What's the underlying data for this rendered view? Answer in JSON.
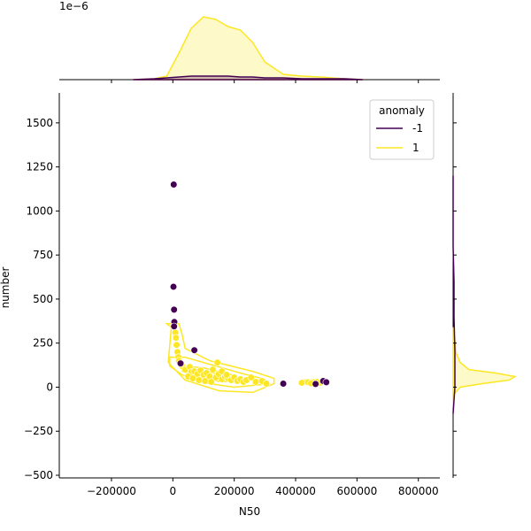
{
  "chart_data": {
    "type": "scatter",
    "title": "",
    "xlabel": "N50",
    "ylabel": "number",
    "xlim": [
      -370000,
      870000
    ],
    "ylim": [
      -515,
      1670
    ],
    "x_ticks": [
      -200000,
      0,
      200000,
      400000,
      600000,
      800000
    ],
    "x_tick_labels": [
      "−200000",
      "0",
      "200000",
      "400000",
      "600000",
      "800000"
    ],
    "y_ticks": [
      -500,
      -250,
      0,
      250,
      500,
      750,
      1000,
      1250,
      1500
    ],
    "y_tick_labels": [
      "−500",
      "−250",
      "0",
      "250",
      "500",
      "750",
      "1000",
      "1250",
      "1500"
    ],
    "top_marginal_scale_label": "1e−6",
    "legend": {
      "title": "anomaly",
      "placement": "top-right",
      "entries": [
        {
          "label": "-1",
          "color": "#440154"
        },
        {
          "label": "1",
          "color": "#fde725"
        }
      ]
    },
    "series": [
      {
        "name": "-1",
        "color": "#440154",
        "points": [
          [
            3000,
            1150
          ],
          [
            2000,
            570
          ],
          [
            4000,
            440
          ],
          [
            5000,
            370
          ],
          [
            4000,
            345
          ],
          [
            70000,
            210
          ],
          [
            25000,
            135
          ],
          [
            360000,
            20
          ],
          [
            465000,
            18
          ],
          [
            490000,
            35
          ],
          [
            500000,
            28
          ]
        ]
      },
      {
        "name": "1",
        "color": "#fde725",
        "points": [
          [
            8000,
            310
          ],
          [
            10000,
            280
          ],
          [
            12000,
            240
          ],
          [
            15000,
            200
          ],
          [
            18000,
            170
          ],
          [
            20000,
            150
          ],
          [
            30000,
            120
          ],
          [
            40000,
            100
          ],
          [
            55000,
            115
          ],
          [
            60000,
            85
          ],
          [
            70000,
            90
          ],
          [
            80000,
            75
          ],
          [
            90000,
            95
          ],
          [
            100000,
            70
          ],
          [
            110000,
            80
          ],
          [
            120000,
            60
          ],
          [
            130000,
            100
          ],
          [
            140000,
            55
          ],
          [
            145000,
            140
          ],
          [
            150000,
            75
          ],
          [
            160000,
            45
          ],
          [
            170000,
            60
          ],
          [
            180000,
            50
          ],
          [
            190000,
            40
          ],
          [
            200000,
            55
          ],
          [
            210000,
            35
          ],
          [
            220000,
            45
          ],
          [
            230000,
            30
          ],
          [
            240000,
            40
          ],
          [
            255000,
            55
          ],
          [
            270000,
            30
          ],
          [
            290000,
            35
          ],
          [
            305000,
            20
          ],
          [
            50000,
            60
          ],
          [
            65000,
            50
          ],
          [
            85000,
            40
          ],
          [
            105000,
            35
          ],
          [
            125000,
            30
          ],
          [
            160000,
            90
          ],
          [
            175000,
            70
          ],
          [
            420000,
            25
          ],
          [
            440000,
            28
          ],
          [
            450000,
            22
          ],
          [
            470000,
            30
          ],
          [
            480000,
            25
          ]
        ]
      }
    ],
    "kde_contours": "bivariate density contours per class",
    "marginal_top": "density of N50 per class",
    "marginal_right": "density of number per class",
    "grid": false
  }
}
